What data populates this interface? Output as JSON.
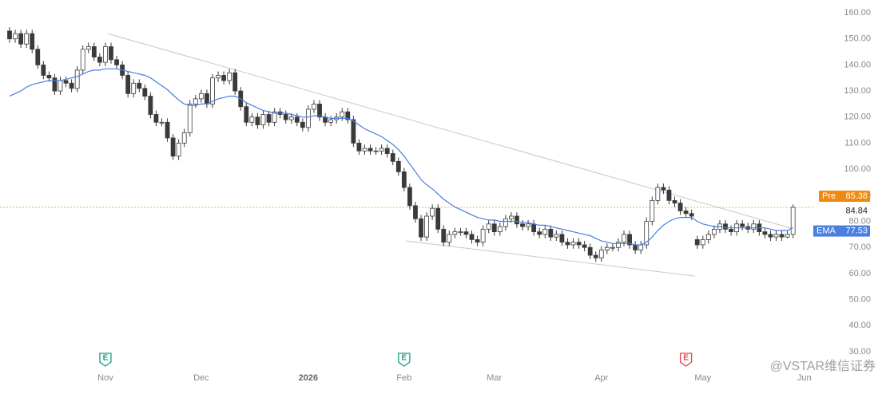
{
  "chart_data": {
    "type": "candlestick",
    "xlim": [
      -1.7,
      145
    ],
    "xticks": [
      {
        "value": 17,
        "label": "Nov"
      },
      {
        "value": 34,
        "label": "Dec"
      },
      {
        "value": 53,
        "label": "2026"
      },
      {
        "value": 70,
        "label": "Feb"
      },
      {
        "value": 86,
        "label": "Mar"
      },
      {
        "value": 105,
        "label": "Apr"
      },
      {
        "value": 123,
        "label": "May"
      },
      {
        "value": 141,
        "label": "Jun"
      }
    ],
    "ylim": [
      30,
      160
    ],
    "yticks": [
      {
        "value": 30,
        "label": "30.00"
      },
      {
        "value": 40,
        "label": "40.00"
      },
      {
        "value": 50,
        "label": "50.00"
      },
      {
        "value": 60,
        "label": "60.00"
      },
      {
        "value": 70,
        "label": "70.00"
      },
      {
        "value": 80,
        "label": "80.00"
      },
      {
        "value": 90,
        "label": "90.00"
      },
      {
        "value": 100,
        "label": "100.00"
      },
      {
        "value": 110,
        "label": "110.00"
      },
      {
        "value": 120,
        "label": "120.00"
      },
      {
        "value": 130,
        "label": "130.00"
      },
      {
        "value": 140,
        "label": "140.00"
      },
      {
        "value": 150,
        "label": "150.00"
      },
      {
        "value": 160,
        "label": "160.00"
      }
    ],
    "up_color": "#ffffff",
    "down_color": "#3a3a3a",
    "outline_color": "#3a3a3a",
    "open": [
      153,
      150,
      152,
      148,
      152,
      146,
      140,
      136,
      135,
      130,
      134,
      133,
      131,
      138,
      146,
      147,
      143,
      141,
      147,
      142,
      140,
      136,
      129,
      133,
      131,
      128,
      121,
      118,
      118,
      112,
      105,
      110,
      114,
      125,
      127,
      129,
      125,
      135,
      136,
      134,
      137,
      130,
      124,
      118,
      120,
      117,
      121,
      118,
      122,
      121,
      119,
      120,
      118,
      116,
      123,
      125,
      120,
      118,
      119,
      120,
      122,
      119,
      110,
      107,
      108,
      107,
      107,
      108,
      106,
      103,
      99,
      93,
      86,
      81,
      74,
      82,
      85,
      77,
      72,
      75,
      76,
      76,
      75,
      73,
      72,
      77,
      79,
      76,
      78,
      81,
      82,
      79,
      78,
      79,
      76,
      75,
      77,
      74,
      75,
      72,
      71,
      72,
      71,
      70,
      67,
      66,
      69,
      70,
      70,
      72,
      75,
      71,
      69,
      71,
      80,
      88,
      93,
      92,
      88,
      87,
      84,
      83,
      73,
      71,
      73,
      75,
      77,
      79,
      77,
      76,
      79,
      78,
      77,
      79,
      76,
      75,
      74,
      75,
      74,
      75
    ],
    "high": [
      154.5,
      153.5,
      153.5,
      153.5,
      153.5,
      147.5,
      141.5,
      137.5,
      136.5,
      135.5,
      135.5,
      134.5,
      139.5,
      147.5,
      148.5,
      148.5,
      144.5,
      148.5,
      148.5,
      143.5,
      141.5,
      137.5,
      134.5,
      134.5,
      132.5,
      129.5,
      122.5,
      119.5,
      119.5,
      113.5,
      111.5,
      115.5,
      126.5,
      128.5,
      130.5,
      130.5,
      136.5,
      137.5,
      137.5,
      138.5,
      138.5,
      131.5,
      125.5,
      121.5,
      121.5,
      122.5,
      122.5,
      123.5,
      123.5,
      122.5,
      121.5,
      121.5,
      119.5,
      124.5,
      126.5,
      126.5,
      121.5,
      120.5,
      121.5,
      123.5,
      123.5,
      120.5,
      111.5,
      109.5,
      109.5,
      108.5,
      109.5,
      109.5,
      107.5,
      104.5,
      100.5,
      94.5,
      87.5,
      82.5,
      83.5,
      86.5,
      86.5,
      78.5,
      76.5,
      77.5,
      77.5,
      77.5,
      76.5,
      74.5,
      78.5,
      80.5,
      80.5,
      79.5,
      82.5,
      83.5,
      83.5,
      80.5,
      80.5,
      80.5,
      77.5,
      78.5,
      78.5,
      76.5,
      76.5,
      73.5,
      73.5,
      73.5,
      72.5,
      71.5,
      68.5,
      70.5,
      71.5,
      71.5,
      73.5,
      76.5,
      76.5,
      72.5,
      72.5,
      81.5,
      89.5,
      94.5,
      94.5,
      93.5,
      89.5,
      88.5,
      85.5,
      84.5,
      74.5,
      74.5,
      76.5,
      78.5,
      80.5,
      80.5,
      78.5,
      80.5,
      80.5,
      79.5,
      80.5,
      80.5,
      77.5,
      76.5,
      76.5,
      76.5,
      76.5,
      86.5
    ],
    "low": [
      148.5,
      148.5,
      146.5,
      146.5,
      144.5,
      138.5,
      134.5,
      133.5,
      128.5,
      128.5,
      131.5,
      129.5,
      129.5,
      136.5,
      144.5,
      141.5,
      139.5,
      139.5,
      140.5,
      138.5,
      134.5,
      127.5,
      127.5,
      129.5,
      126.5,
      119.5,
      116.5,
      116.5,
      110.5,
      103.5,
      103.5,
      108.5,
      112.5,
      123.5,
      125.5,
      123.5,
      123.5,
      133.5,
      132.5,
      132.5,
      128.5,
      122.5,
      116.5,
      116.5,
      115.5,
      115.5,
      116.5,
      116.5,
      119.5,
      117.5,
      117.5,
      116.5,
      114.5,
      114.5,
      121.5,
      118.5,
      116.5,
      116.5,
      117.5,
      118.5,
      117.5,
      108.5,
      105.5,
      105.5,
      105.5,
      105.5,
      105.5,
      104.5,
      101.5,
      97.5,
      91.5,
      84.5,
      79.5,
      72.5,
      72.5,
      80.5,
      75.5,
      70.5,
      70.5,
      73.5,
      74.5,
      73.5,
      71.5,
      70.5,
      70.5,
      75.5,
      74.5,
      74.5,
      76.5,
      79.5,
      77.5,
      76.5,
      76.5,
      74.5,
      73.5,
      73.5,
      72.5,
      72.5,
      70.5,
      69.5,
      69.5,
      69.5,
      68.5,
      65.5,
      64.5,
      64.5,
      67.5,
      68.5,
      68.5,
      70.5,
      69.5,
      67.5,
      67.5,
      69.5,
      78.5,
      86.5,
      90.5,
      86.5,
      85.5,
      82.5,
      81.5,
      80.5,
      69.5,
      69.5,
      71.5,
      73.5,
      75.5,
      75.5,
      74.5,
      74.5,
      76.5,
      75.5,
      75.5,
      74.5,
      73.5,
      72.5,
      72.5,
      72.5,
      73.5,
      73.5
    ],
    "close": [
      150,
      152,
      148,
      152,
      146,
      140,
      136,
      135,
      130,
      134,
      133,
      131,
      138,
      146,
      147,
      143,
      141,
      147,
      142,
      140,
      136,
      129,
      133,
      131,
      128,
      121,
      118,
      118,
      112,
      105,
      110,
      114,
      125,
      127,
      129,
      125,
      135,
      136,
      134,
      137,
      130,
      124,
      118,
      120,
      117,
      121,
      118,
      122,
      121,
      119,
      120,
      118,
      116,
      123,
      125,
      120,
      118,
      119,
      120,
      122,
      119,
      110,
      107,
      108,
      107,
      107,
      108,
      106,
      103,
      99,
      93,
      86,
      81,
      74,
      82,
      85,
      77,
      72,
      75,
      76,
      76,
      75,
      73,
      72,
      77,
      79,
      76,
      78,
      81,
      82,
      79,
      78,
      79,
      76,
      75,
      77,
      74,
      75,
      72,
      71,
      72,
      71,
      70,
      67,
      66,
      69,
      70,
      70,
      72,
      75,
      71,
      69,
      71,
      80,
      88,
      93,
      92,
      88,
      87,
      84,
      83,
      82,
      71,
      73,
      75,
      77,
      79,
      77,
      76,
      79,
      78,
      77,
      79,
      76,
      75,
      74,
      75,
      74,
      75,
      85.38
    ],
    "ema": {
      "name": "EMA",
      "color": "#4a7fe0",
      "values": [
        128,
        129,
        130,
        131.5,
        132.5,
        133,
        133.5,
        134,
        134,
        134,
        134.5,
        135,
        135.5,
        136.5,
        137.5,
        138,
        138,
        138.5,
        138.5,
        138.5,
        138,
        137.5,
        137,
        136.5,
        136,
        135,
        133.5,
        132,
        130.5,
        128.5,
        126.5,
        125,
        124.5,
        124.5,
        125,
        125,
        126,
        127,
        127.5,
        128,
        128,
        127,
        125.5,
        124.5,
        123.5,
        122.5,
        122,
        121.5,
        121.5,
        121.5,
        121,
        120.5,
        120,
        120,
        120.5,
        120.5,
        120,
        119.5,
        119.5,
        119.5,
        119.5,
        118.5,
        117,
        115.5,
        114.5,
        113.5,
        112.5,
        111,
        109.5,
        107.5,
        105,
        102,
        99,
        96,
        94,
        92.5,
        90.5,
        88.5,
        87,
        85.5,
        84.5,
        83.5,
        82.5,
        81.5,
        81,
        80.5,
        80.5,
        80,
        80,
        80,
        80,
        79.5,
        79.5,
        79,
        78.5,
        78.5,
        78,
        77.5,
        77,
        76.5,
        76,
        75.5,
        75,
        74.5,
        73.5,
        72.5,
        72,
        71.5,
        71.5,
        71.5,
        71.5,
        71,
        71,
        72,
        74,
        76.5,
        78.5,
        80,
        81,
        81.5,
        81.5,
        81.5,
        80,
        79,
        78.5,
        78,
        78,
        77.5,
        77.5,
        77.5,
        77.5,
        77.5,
        77.5,
        77.5,
        77.5,
        77,
        76.5,
        76.5,
        76.5,
        77.53
      ]
    },
    "pre": {
      "label": "Pre",
      "color": "#f0890f"
    },
    "last_price": 84.84,
    "trendlines": [
      {
        "x": [
          17.4,
          139.1
        ],
        "y": [
          152,
          77.1
        ],
        "color": "#c8c8c8"
      },
      {
        "x": [
          70.3,
          121.6
        ],
        "y": [
          72.5,
          59
        ],
        "color": "#c8c8c8"
      }
    ],
    "events": [
      {
        "label": "E",
        "x": 17,
        "color": "#1a9b7d"
      },
      {
        "label": "E",
        "x": 70,
        "color": "#1a9b7d"
      },
      {
        "label": "E",
        "x": 120,
        "color": "#e0434b"
      }
    ],
    "watermark": "@VSTAR维信证券"
  }
}
